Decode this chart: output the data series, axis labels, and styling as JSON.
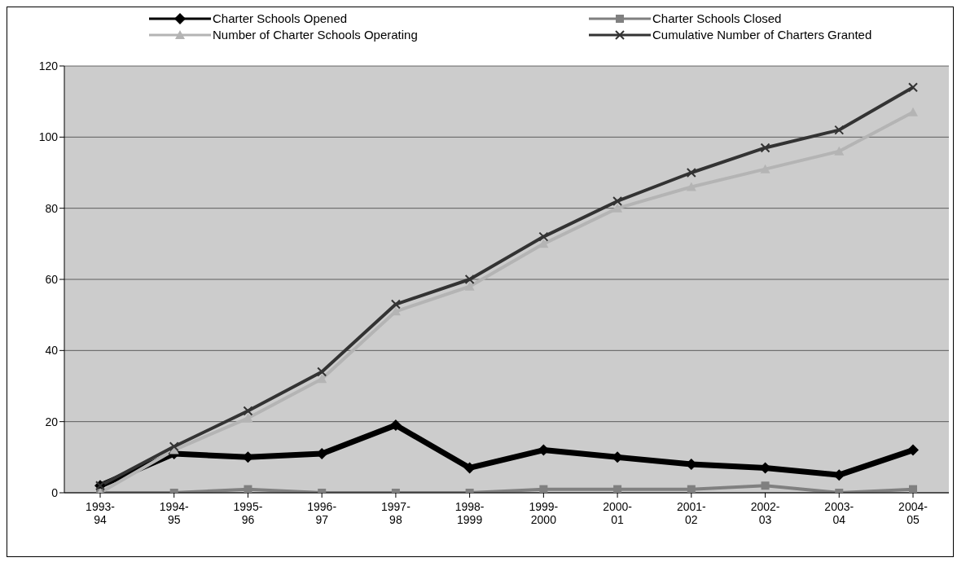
{
  "chart_data": {
    "type": "line",
    "categories": [
      "1993-94",
      "1994-95",
      "1995-96",
      "1996-97",
      "1997-98",
      "1998-1999",
      "1999-2000",
      "2000-01",
      "2001-02",
      "2002-03",
      "2003-04",
      "2004-05"
    ],
    "series": [
      {
        "name": "Charter Schools Opened",
        "color": "#000000",
        "marker": "diamond",
        "values": [
          2,
          11,
          10,
          11,
          19,
          7,
          12,
          10,
          8,
          7,
          5,
          12
        ]
      },
      {
        "name": "Charter Schools Closed",
        "color": "#808080",
        "marker": "square",
        "values": [
          0,
          0,
          1,
          0,
          0,
          0,
          1,
          1,
          1,
          2,
          0,
          1
        ]
      },
      {
        "name": "Number of Charter Schools Operating",
        "color": "#b4b4b4",
        "marker": "triangle",
        "values": [
          0,
          12,
          21,
          32,
          51,
          58,
          70,
          80,
          86,
          91,
          96,
          107
        ]
      },
      {
        "name": "Cumulative Number of Charters Granted",
        "color": "#333333",
        "marker": "cross",
        "values": [
          2,
          13,
          23,
          34,
          53,
          60,
          72,
          82,
          90,
          97,
          102,
          114
        ]
      }
    ],
    "ylim": [
      0,
      120
    ],
    "yticks": [
      0,
      20,
      40,
      60,
      80,
      100,
      120
    ],
    "grid": "y",
    "legend": "top"
  }
}
